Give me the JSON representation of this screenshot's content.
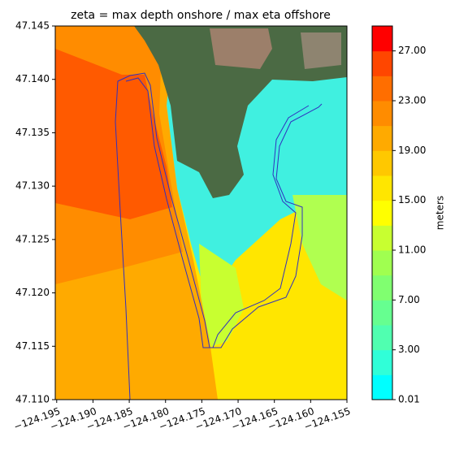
{
  "chart_data": {
    "type": "contourf",
    "title": "zeta = max depth onshore / max eta offshore",
    "xlim": [
      -124.1952,
      -124.155
    ],
    "ylim": [
      47.11,
      47.145
    ],
    "xticks": [
      {
        "value": -124.195,
        "label": "−124.195"
      },
      {
        "value": -124.19,
        "label": "−124.190"
      },
      {
        "value": -124.185,
        "label": "−124.185"
      },
      {
        "value": -124.18,
        "label": "−124.180"
      },
      {
        "value": -124.175,
        "label": "−124.175"
      },
      {
        "value": -124.17,
        "label": "−124.170"
      },
      {
        "value": -124.165,
        "label": "−124.165"
      },
      {
        "value": -124.16,
        "label": "−124.160"
      },
      {
        "value": -124.155,
        "label": "−124.155"
      }
    ],
    "yticks": [
      {
        "value": 47.11,
        "label": "47.110"
      },
      {
        "value": 47.115,
        "label": "47.115"
      },
      {
        "value": 47.12,
        "label": "47.120"
      },
      {
        "value": 47.125,
        "label": "47.125"
      },
      {
        "value": 47.13,
        "label": "47.130"
      },
      {
        "value": 47.135,
        "label": "47.135"
      },
      {
        "value": 47.14,
        "label": "47.140"
      },
      {
        "value": 47.145,
        "label": "47.145"
      }
    ],
    "colorbar": {
      "label": "meters",
      "levels": [
        0.01,
        1,
        3,
        5,
        7,
        9,
        11,
        13,
        15,
        17,
        19,
        21,
        23,
        25,
        27,
        29
      ],
      "colors": [
        "#00ffff",
        "#30ffd8",
        "#50ffb0",
        "#66ff90",
        "#80ff70",
        "#a0ff50",
        "#c8ff30",
        "#ffff00",
        "#ffe600",
        "#ffc800",
        "#ffaa00",
        "#ff8c00",
        "#ff6e00",
        "#ff4600",
        "#ff0000"
      ],
      "ticks": [
        {
          "value": 0.01,
          "label": "0.01"
        },
        {
          "value": 3,
          "label": "3.00"
        },
        {
          "value": 7,
          "label": "7.00"
        },
        {
          "value": 11,
          "label": "11.00"
        },
        {
          "value": 15,
          "label": "15.00"
        },
        {
          "value": 19,
          "label": "19.00"
        },
        {
          "value": 23,
          "label": "23.00"
        },
        {
          "value": 27,
          "label": "27.00"
        }
      ]
    }
  }
}
